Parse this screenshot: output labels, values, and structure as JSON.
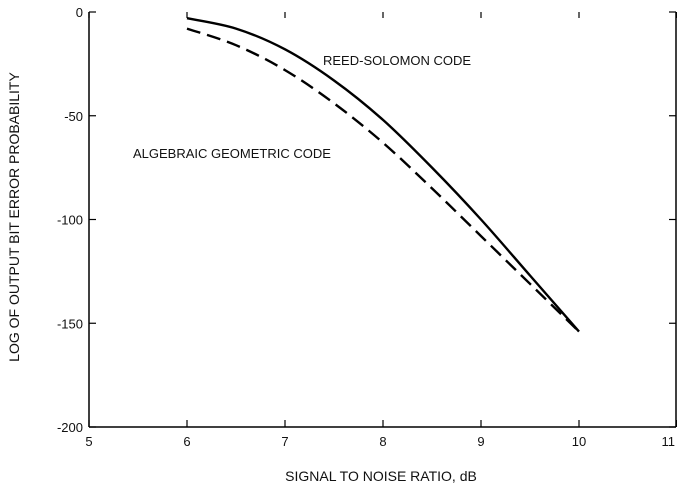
{
  "chart_data": {
    "type": "line",
    "title": "",
    "xlabel": "SIGNAL TO NOISE RATIO, dB",
    "ylabel": "LOG OF OUTPUT BIT ERROR PROBABILITY",
    "xlim": [
      5,
      11
    ],
    "ylim": [
      -200,
      0
    ],
    "x_ticks": [
      5,
      6,
      7,
      8,
      9,
      10,
      11
    ],
    "x_tick_labels": [
      "5",
      "6",
      "7",
      "8",
      "9",
      "10",
      "11"
    ],
    "y_ticks": [
      0,
      -50,
      -100,
      -150,
      -200
    ],
    "y_tick_labels": [
      "0",
      "-50",
      "-100",
      "-150",
      "-200"
    ],
    "grid": false,
    "series": [
      {
        "name": "REED-SOLOMON CODE",
        "style": "solid",
        "color": "#000000",
        "x": [
          6.0,
          6.5,
          7.0,
          7.5,
          8.0,
          8.5,
          9.0,
          9.5,
          10.0
        ],
        "y": [
          -3,
          -8,
          -18,
          -33,
          -52,
          -75,
          -100,
          -127,
          -154
        ]
      },
      {
        "name": "ALGEBRAIC GEOMETRIC CODE",
        "style": "dashed",
        "color": "#000000",
        "x": [
          6.0,
          6.5,
          7.0,
          7.5,
          8.0,
          8.5,
          9.0,
          9.5,
          10.0
        ],
        "y": [
          -8,
          -16,
          -28,
          -44,
          -63,
          -85,
          -108,
          -131,
          -154
        ]
      }
    ],
    "annotations": [
      {
        "text": "REED-SOLOMON CODE",
        "series": 0
      },
      {
        "text": "ALGEBRAIC GEOMETRIC CODE",
        "series": 1
      }
    ]
  }
}
